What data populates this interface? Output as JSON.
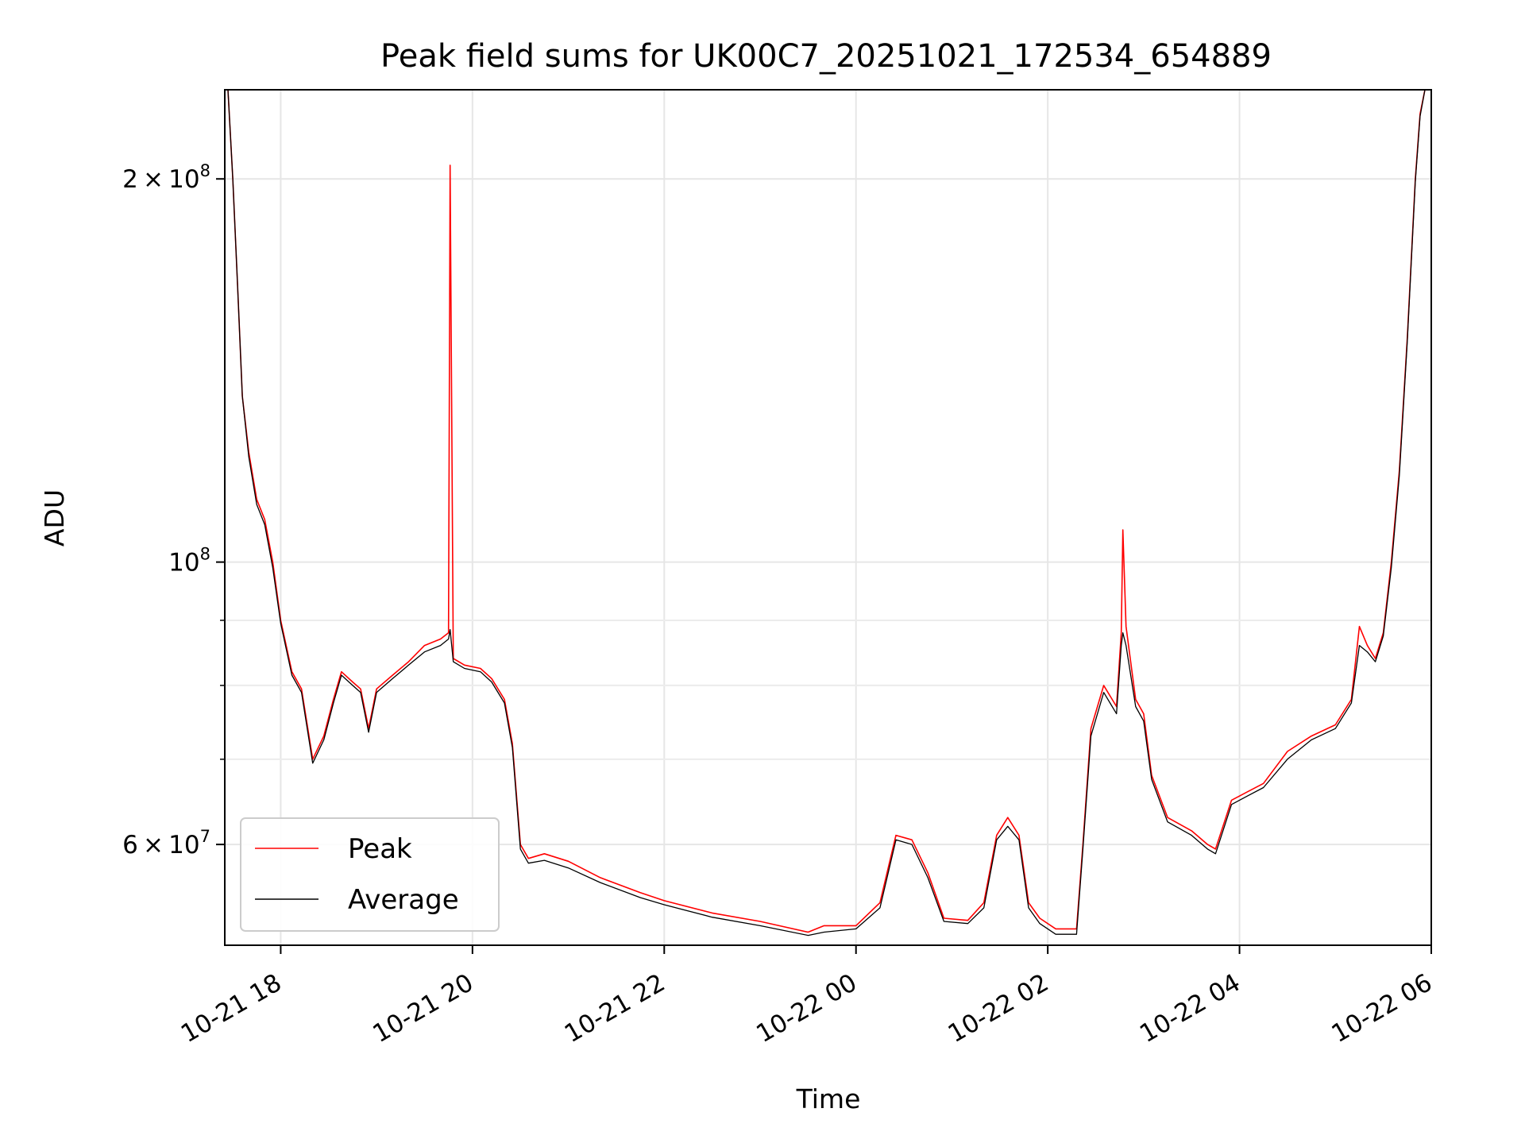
{
  "chart_data": {
    "type": "line",
    "title": "Peak field sums for UK00C7_20251021_172534_654889",
    "xlabel": "Time",
    "ylabel": "ADU",
    "y_scale": "log",
    "ylim": [
      50000000,
      235000000
    ],
    "xlim": [
      "2025-10-21 17:25",
      "2025-10-22 06:00"
    ],
    "grid": true,
    "legend_position": "lower-left",
    "x_ticks": [
      {
        "value": "2025-10-21 18:00",
        "label": "10-21 18"
      },
      {
        "value": "2025-10-21 20:00",
        "label": "10-21 20"
      },
      {
        "value": "2025-10-21 22:00",
        "label": "10-21 22"
      },
      {
        "value": "2025-10-22 00:00",
        "label": "10-22 00"
      },
      {
        "value": "2025-10-22 02:00",
        "label": "10-22 02"
      },
      {
        "value": "2025-10-22 04:00",
        "label": "10-22 04"
      },
      {
        "value": "2025-10-22 06:00",
        "label": "10-22 06"
      }
    ],
    "y_ticks": [
      {
        "value": 60000000,
        "mantissa": "6",
        "exponent": "7"
      },
      {
        "value": 100000000,
        "mantissa": "",
        "exponent": "8"
      },
      {
        "value": 200000000,
        "mantissa": "2",
        "exponent": "8"
      }
    ],
    "y_minor_ticks": [
      70000000,
      80000000,
      90000000
    ],
    "series": [
      {
        "name": "Peak",
        "color": "#ff0000",
        "points": [
          [
            "2025-10-21 17:27",
            235000000
          ],
          [
            "2025-10-21 17:30",
            200000000
          ],
          [
            "2025-10-21 17:33",
            165000000
          ],
          [
            "2025-10-21 17:36",
            135000000
          ],
          [
            "2025-10-21 17:40",
            122000000
          ],
          [
            "2025-10-21 17:45",
            112000000
          ],
          [
            "2025-10-21 17:50",
            108000000
          ],
          [
            "2025-10-21 17:55",
            100000000
          ],
          [
            "2025-10-21 18:00",
            90000000
          ],
          [
            "2025-10-21 18:07",
            82000000
          ],
          [
            "2025-10-21 18:13",
            79500000
          ],
          [
            "2025-10-21 18:20",
            70000000
          ],
          [
            "2025-10-21 18:27",
            73000000
          ],
          [
            "2025-10-21 18:33",
            78000000
          ],
          [
            "2025-10-21 18:38",
            82000000
          ],
          [
            "2025-10-21 18:45",
            80500000
          ],
          [
            "2025-10-21 18:50",
            79500000
          ],
          [
            "2025-10-21 18:55",
            74000000
          ],
          [
            "2025-10-21 19:00",
            79500000
          ],
          [
            "2025-10-21 19:10",
            81500000
          ],
          [
            "2025-10-21 19:20",
            83500000
          ],
          [
            "2025-10-21 19:30",
            86000000
          ],
          [
            "2025-10-21 19:40",
            87000000
          ],
          [
            "2025-10-21 19:45",
            88000000
          ],
          [
            "2025-10-21 19:46",
            205000000
          ],
          [
            "2025-10-21 19:48",
            84000000
          ],
          [
            "2025-10-21 19:55",
            83000000
          ],
          [
            "2025-10-21 20:05",
            82500000
          ],
          [
            "2025-10-21 20:12",
            81000000
          ],
          [
            "2025-10-21 20:20",
            78000000
          ],
          [
            "2025-10-21 20:25",
            72000000
          ],
          [
            "2025-10-21 20:30",
            60000000
          ],
          [
            "2025-10-21 20:35",
            58500000
          ],
          [
            "2025-10-21 20:45",
            59000000
          ],
          [
            "2025-10-21 21:00",
            58200000
          ],
          [
            "2025-10-21 21:20",
            56500000
          ],
          [
            "2025-10-21 21:45",
            55000000
          ],
          [
            "2025-10-21 22:00",
            54200000
          ],
          [
            "2025-10-21 22:30",
            53000000
          ],
          [
            "2025-10-21 23:00",
            52200000
          ],
          [
            "2025-10-21 23:30",
            51200000
          ],
          [
            "2025-10-21 23:40",
            51800000
          ],
          [
            "2025-10-22 00:00",
            51800000
          ],
          [
            "2025-10-22 00:15",
            54000000
          ],
          [
            "2025-10-22 00:25",
            61000000
          ],
          [
            "2025-10-22 00:35",
            60500000
          ],
          [
            "2025-10-22 00:45",
            57000000
          ],
          [
            "2025-10-22 00:55",
            52500000
          ],
          [
            "2025-10-22 01:10",
            52300000
          ],
          [
            "2025-10-22 01:20",
            54000000
          ],
          [
            "2025-10-22 01:28",
            61000000
          ],
          [
            "2025-10-22 01:35",
            63000000
          ],
          [
            "2025-10-22 01:42",
            61000000
          ],
          [
            "2025-10-22 01:48",
            54000000
          ],
          [
            "2025-10-22 01:55",
            52500000
          ],
          [
            "2025-10-22 02:05",
            51500000
          ],
          [
            "2025-10-22 02:18",
            51500000
          ],
          [
            "2025-10-22 02:22",
            60000000
          ],
          [
            "2025-10-22 02:27",
            74000000
          ],
          [
            "2025-10-22 02:35",
            80000000
          ],
          [
            "2025-10-22 02:43",
            77000000
          ],
          [
            "2025-10-22 02:46",
            88000000
          ],
          [
            "2025-10-22 02:47",
            106000000
          ],
          [
            "2025-10-22 02:49",
            89000000
          ],
          [
            "2025-10-22 02:55",
            78000000
          ],
          [
            "2025-10-22 03:00",
            76000000
          ],
          [
            "2025-10-22 03:05",
            68000000
          ],
          [
            "2025-10-22 03:15",
            63000000
          ],
          [
            "2025-10-22 03:30",
            61500000
          ],
          [
            "2025-10-22 03:40",
            60000000
          ],
          [
            "2025-10-22 03:45",
            59500000
          ],
          [
            "2025-10-22 03:55",
            65000000
          ],
          [
            "2025-10-22 04:05",
            66000000
          ],
          [
            "2025-10-22 04:15",
            67000000
          ],
          [
            "2025-10-22 04:30",
            71000000
          ],
          [
            "2025-10-22 04:45",
            73000000
          ],
          [
            "2025-10-22 05:00",
            74500000
          ],
          [
            "2025-10-22 05:10",
            78000000
          ],
          [
            "2025-10-22 05:15",
            89000000
          ],
          [
            "2025-10-22 05:20",
            86000000
          ],
          [
            "2025-10-22 05:25",
            84000000
          ],
          [
            "2025-10-22 05:30",
            88000000
          ],
          [
            "2025-10-22 05:35",
            100000000
          ],
          [
            "2025-10-22 05:40",
            118000000
          ],
          [
            "2025-10-22 05:45",
            150000000
          ],
          [
            "2025-10-22 05:50",
            200000000
          ],
          [
            "2025-10-22 05:53",
            225000000
          ],
          [
            "2025-10-22 05:56",
            235000000
          ]
        ]
      },
      {
        "name": "Average",
        "color": "#000000",
        "points": [
          [
            "2025-10-21 17:27",
            235000000
          ],
          [
            "2025-10-21 17:30",
            200000000
          ],
          [
            "2025-10-21 17:33",
            165000000
          ],
          [
            "2025-10-21 17:36",
            135000000
          ],
          [
            "2025-10-21 17:40",
            121000000
          ],
          [
            "2025-10-21 17:45",
            111000000
          ],
          [
            "2025-10-21 17:50",
            107000000
          ],
          [
            "2025-10-21 17:55",
            99000000
          ],
          [
            "2025-10-21 18:00",
            89500000
          ],
          [
            "2025-10-21 18:07",
            81500000
          ],
          [
            "2025-10-21 18:13",
            79000000
          ],
          [
            "2025-10-21 18:20",
            69500000
          ],
          [
            "2025-10-21 18:27",
            72500000
          ],
          [
            "2025-10-21 18:33",
            77500000
          ],
          [
            "2025-10-21 18:38",
            81500000
          ],
          [
            "2025-10-21 18:45",
            80000000
          ],
          [
            "2025-10-21 18:50",
            79000000
          ],
          [
            "2025-10-21 18:55",
            73500000
          ],
          [
            "2025-10-21 19:00",
            79000000
          ],
          [
            "2025-10-21 19:10",
            81000000
          ],
          [
            "2025-10-21 19:20",
            83000000
          ],
          [
            "2025-10-21 19:30",
            85000000
          ],
          [
            "2025-10-21 19:40",
            86000000
          ],
          [
            "2025-10-21 19:45",
            87000000
          ],
          [
            "2025-10-21 19:46",
            88500000
          ],
          [
            "2025-10-21 19:48",
            83500000
          ],
          [
            "2025-10-21 19:55",
            82500000
          ],
          [
            "2025-10-21 20:05",
            82000000
          ],
          [
            "2025-10-21 20:12",
            80500000
          ],
          [
            "2025-10-21 20:20",
            77500000
          ],
          [
            "2025-10-21 20:25",
            71500000
          ],
          [
            "2025-10-21 20:30",
            59500000
          ],
          [
            "2025-10-21 20:35",
            58000000
          ],
          [
            "2025-10-21 20:45",
            58300000
          ],
          [
            "2025-10-21 21:00",
            57500000
          ],
          [
            "2025-10-21 21:20",
            56000000
          ],
          [
            "2025-10-21 21:45",
            54500000
          ],
          [
            "2025-10-21 22:00",
            53800000
          ],
          [
            "2025-10-21 22:30",
            52600000
          ],
          [
            "2025-10-21 23:00",
            51800000
          ],
          [
            "2025-10-21 23:30",
            50900000
          ],
          [
            "2025-10-21 23:40",
            51200000
          ],
          [
            "2025-10-22 00:00",
            51500000
          ],
          [
            "2025-10-22 00:15",
            53500000
          ],
          [
            "2025-10-22 00:25",
            60500000
          ],
          [
            "2025-10-22 00:35",
            60000000
          ],
          [
            "2025-10-22 00:45",
            56500000
          ],
          [
            "2025-10-22 00:55",
            52200000
          ],
          [
            "2025-10-22 01:10",
            52000000
          ],
          [
            "2025-10-22 01:20",
            53500000
          ],
          [
            "2025-10-22 01:28",
            60500000
          ],
          [
            "2025-10-22 01:35",
            62000000
          ],
          [
            "2025-10-22 01:42",
            60500000
          ],
          [
            "2025-10-22 01:48",
            53500000
          ],
          [
            "2025-10-22 01:55",
            52000000
          ],
          [
            "2025-10-22 02:05",
            51000000
          ],
          [
            "2025-10-22 02:18",
            51000000
          ],
          [
            "2025-10-22 02:22",
            59500000
          ],
          [
            "2025-10-22 02:27",
            73000000
          ],
          [
            "2025-10-22 02:35",
            79000000
          ],
          [
            "2025-10-22 02:43",
            76000000
          ],
          [
            "2025-10-22 02:46",
            86000000
          ],
          [
            "2025-10-22 02:47",
            88000000
          ],
          [
            "2025-10-22 02:49",
            86000000
          ],
          [
            "2025-10-22 02:55",
            77000000
          ],
          [
            "2025-10-22 03:00",
            75000000
          ],
          [
            "2025-10-22 03:05",
            67500000
          ],
          [
            "2025-10-22 03:15",
            62500000
          ],
          [
            "2025-10-22 03:30",
            61000000
          ],
          [
            "2025-10-22 03:40",
            59500000
          ],
          [
            "2025-10-22 03:45",
            59000000
          ],
          [
            "2025-10-22 03:55",
            64500000
          ],
          [
            "2025-10-22 04:05",
            65500000
          ],
          [
            "2025-10-22 04:15",
            66500000
          ],
          [
            "2025-10-22 04:30",
            70000000
          ],
          [
            "2025-10-22 04:45",
            72500000
          ],
          [
            "2025-10-22 05:00",
            74000000
          ],
          [
            "2025-10-22 05:10",
            77500000
          ],
          [
            "2025-10-22 05:15",
            86000000
          ],
          [
            "2025-10-22 05:20",
            85000000
          ],
          [
            "2025-10-22 05:25",
            83500000
          ],
          [
            "2025-10-22 05:30",
            87500000
          ],
          [
            "2025-10-22 05:35",
            99000000
          ],
          [
            "2025-10-22 05:40",
            117000000
          ],
          [
            "2025-10-22 05:45",
            149000000
          ],
          [
            "2025-10-22 05:50",
            199000000
          ],
          [
            "2025-10-22 05:53",
            224000000
          ],
          [
            "2025-10-22 05:56",
            235000000
          ]
        ]
      }
    ]
  }
}
